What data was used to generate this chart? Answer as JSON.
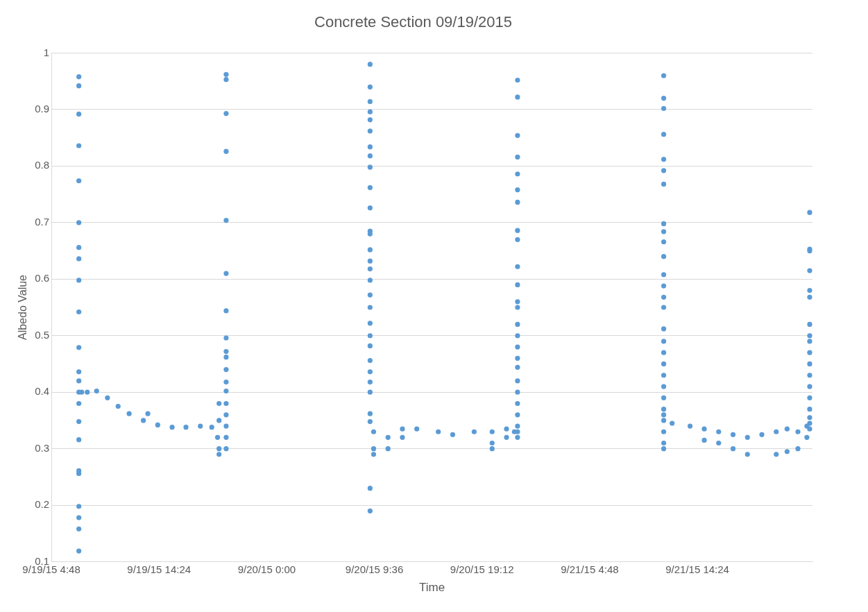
{
  "chart_data": {
    "type": "scatter",
    "title": "Concrete Section 09/19/2015",
    "xlabel": "Time",
    "ylabel": "Albedo Value",
    "xlim": [
      "2015-09-19T04:48",
      "2015-09-22T00:40"
    ],
    "xticks": [
      {
        "value": "2015-09-19T04:48",
        "label": "9/19/15 4:48"
      },
      {
        "value": "2015-09-19T14:24",
        "label": "9/19/15 14:24"
      },
      {
        "value": "2015-09-20T00:00",
        "label": "9/20/15 0:00"
      },
      {
        "value": "2015-09-20T09:36",
        "label": "9/20/15 9:36"
      },
      {
        "value": "2015-09-20T19:12",
        "label": "9/20/15 19:12"
      },
      {
        "value": "2015-09-21T04:48",
        "label": "9/21/15 4:48"
      },
      {
        "value": "2015-09-21T14:24",
        "label": "9/21/15 14:24"
      }
    ],
    "ylim": [
      0.1,
      1
    ],
    "yticks": [
      0.1,
      0.2,
      0.3,
      0.4,
      0.5,
      0.6,
      0.7,
      0.8,
      0.9,
      1
    ],
    "grid": "y",
    "legend": false,
    "marker": "circle",
    "series": [
      {
        "color": "#5b9bd5",
        "x": [
          "2015-09-19T07:15",
          "2015-09-19T07:15",
          "2015-09-19T07:15",
          "2015-09-19T07:15",
          "2015-09-19T07:15",
          "2015-09-19T07:15",
          "2015-09-19T07:15",
          "2015-09-19T07:15",
          "2015-09-19T07:15",
          "2015-09-19T07:15",
          "2015-09-19T07:15",
          "2015-09-19T07:15",
          "2015-09-19T07:15",
          "2015-09-19T07:15",
          "2015-09-19T07:15",
          "2015-09-19T07:15",
          "2015-09-19T07:15",
          "2015-09-19T07:15",
          "2015-09-19T07:15",
          "2015-09-19T07:15",
          "2015-09-19T07:15",
          "2015-09-19T07:15",
          "2015-09-19T07:15",
          "2015-09-19T07:30",
          "2015-09-19T08:00",
          "2015-09-19T08:50",
          "2015-09-19T09:48",
          "2015-09-19T10:45",
          "2015-09-19T11:44",
          "2015-09-19T13:00",
          "2015-09-19T13:24",
          "2015-09-19T14:17",
          "2015-09-19T15:34",
          "2015-09-19T16:48",
          "2015-09-19T18:05",
          "2015-09-19T19:06",
          "2015-09-19T19:37",
          "2015-09-19T19:45",
          "2015-09-19T19:45",
          "2015-09-19T19:45",
          "2015-09-19T19:45",
          "2015-09-19T20:23",
          "2015-09-19T20:23",
          "2015-09-19T20:23",
          "2015-09-19T20:23",
          "2015-09-19T20:23",
          "2015-09-19T20:23",
          "2015-09-19T20:23",
          "2015-09-19T20:23",
          "2015-09-19T20:23",
          "2015-09-19T20:23",
          "2015-09-19T20:23",
          "2015-09-19T20:23",
          "2015-09-19T20:23",
          "2015-09-19T20:23",
          "2015-09-19T20:23",
          "2015-09-19T20:23",
          "2015-09-19T20:23",
          "2015-09-19T20:23",
          "2015-09-20T09:13",
          "2015-09-20T09:13",
          "2015-09-20T09:13",
          "2015-09-20T09:13",
          "2015-09-20T09:13",
          "2015-09-20T09:13",
          "2015-09-20T09:13",
          "2015-09-20T09:13",
          "2015-09-20T09:13",
          "2015-09-20T09:13",
          "2015-09-20T09:13",
          "2015-09-20T09:13",
          "2015-09-20T09:13",
          "2015-09-20T09:13",
          "2015-09-20T09:13",
          "2015-09-20T09:13",
          "2015-09-20T09:13",
          "2015-09-20T09:13",
          "2015-09-20T09:13",
          "2015-09-20T09:13",
          "2015-09-20T09:13",
          "2015-09-20T09:13",
          "2015-09-20T09:13",
          "2015-09-20T09:13",
          "2015-09-20T09:13",
          "2015-09-20T09:13",
          "2015-09-20T09:13",
          "2015-09-20T09:13",
          "2015-09-20T09:13",
          "2015-09-20T09:13",
          "2015-09-20T09:32",
          "2015-09-20T09:32",
          "2015-09-20T09:32",
          "2015-09-20T10:49",
          "2015-09-20T10:49",
          "2015-09-20T12:06",
          "2015-09-20T12:06",
          "2015-09-20T13:23",
          "2015-09-20T15:18",
          "2015-09-20T16:35",
          "2015-09-20T18:30",
          "2015-09-20T20:06",
          "2015-09-20T20:06",
          "2015-09-20T20:06",
          "2015-09-20T21:23",
          "2015-09-20T21:23",
          "2015-09-20T22:05",
          "2015-09-20T22:22",
          "2015-09-20T22:22",
          "2015-09-20T22:22",
          "2015-09-20T22:22",
          "2015-09-20T22:22",
          "2015-09-20T22:22",
          "2015-09-20T22:22",
          "2015-09-20T22:22",
          "2015-09-20T22:22",
          "2015-09-20T22:22",
          "2015-09-20T22:22",
          "2015-09-20T22:22",
          "2015-09-20T22:22",
          "2015-09-20T22:22",
          "2015-09-20T22:22",
          "2015-09-20T22:22",
          "2015-09-20T22:22",
          "2015-09-20T22:22",
          "2015-09-20T22:22",
          "2015-09-20T22:22",
          "2015-09-20T22:22",
          "2015-09-20T22:22",
          "2015-09-20T22:22",
          "2015-09-20T22:22",
          "2015-09-20T22:22",
          "2015-09-21T11:24",
          "2015-09-21T11:24",
          "2015-09-21T11:24",
          "2015-09-21T11:24",
          "2015-09-21T11:24",
          "2015-09-21T11:24",
          "2015-09-21T11:24",
          "2015-09-21T11:24",
          "2015-09-21T11:24",
          "2015-09-21T11:24",
          "2015-09-21T11:24",
          "2015-09-21T11:24",
          "2015-09-21T11:24",
          "2015-09-21T11:24",
          "2015-09-21T11:24",
          "2015-09-21T11:24",
          "2015-09-21T11:24",
          "2015-09-21T11:24",
          "2015-09-21T11:24",
          "2015-09-21T11:24",
          "2015-09-21T11:24",
          "2015-09-21T11:24",
          "2015-09-21T11:24",
          "2015-09-21T11:24",
          "2015-09-21T11:24",
          "2015-09-21T11:24",
          "2015-09-21T11:24",
          "2015-09-21T11:24",
          "2015-09-21T12:09",
          "2015-09-21T13:45",
          "2015-09-21T15:01",
          "2015-09-21T15:01",
          "2015-09-21T16:18",
          "2015-09-21T16:18",
          "2015-09-21T17:35",
          "2015-09-21T17:35",
          "2015-09-21T18:52",
          "2015-09-21T18:52",
          "2015-09-21T20:09",
          "2015-09-21T21:26",
          "2015-09-21T21:26",
          "2015-09-21T22:24",
          "2015-09-21T22:24",
          "2015-09-21T23:22",
          "2015-09-21T23:22",
          "2015-09-22T00:10",
          "2015-09-22T00:10",
          "2015-09-22T00:25",
          "2015-09-22T00:25",
          "2015-09-22T00:25",
          "2015-09-22T00:25",
          "2015-09-22T00:25",
          "2015-09-22T00:25",
          "2015-09-22T00:25",
          "2015-09-22T00:25",
          "2015-09-22T00:25",
          "2015-09-22T00:25",
          "2015-09-22T00:25",
          "2015-09-22T00:25",
          "2015-09-22T00:25",
          "2015-09-22T00:25",
          "2015-09-22T00:25",
          "2015-09-22T00:25",
          "2015-09-22T00:25",
          "2015-09-22T00:25"
        ],
        "values": [
          0.958,
          0.942,
          0.892,
          0.836,
          0.774,
          0.7,
          0.656,
          0.636,
          0.598,
          0.542,
          0.479,
          0.436,
          0.42,
          0.4,
          0.38,
          0.348,
          0.316,
          0.261,
          0.256,
          0.198,
          0.178,
          0.158,
          0.119,
          0.4,
          0.4,
          0.402,
          0.39,
          0.375,
          0.362,
          0.35,
          0.362,
          0.342,
          0.338,
          0.338,
          0.34,
          0.338,
          0.32,
          0.38,
          0.35,
          0.3,
          0.29,
          0.962,
          0.953,
          0.893,
          0.826,
          0.704,
          0.61,
          0.544,
          0.496,
          0.472,
          0.462,
          0.44,
          0.418,
          0.402,
          0.38,
          0.36,
          0.34,
          0.32,
          0.3,
          0.98,
          0.94,
          0.914,
          0.896,
          0.882,
          0.862,
          0.834,
          0.818,
          0.798,
          0.762,
          0.726,
          0.685,
          0.68,
          0.652,
          0.632,
          0.618,
          0.598,
          0.572,
          0.55,
          0.522,
          0.5,
          0.482,
          0.456,
          0.436,
          0.418,
          0.4,
          0.362,
          0.348,
          0.23,
          0.19,
          0.33,
          0.3,
          0.29,
          0.32,
          0.3,
          0.335,
          0.32,
          0.335,
          0.33,
          0.325,
          0.33,
          0.33,
          0.31,
          0.3,
          0.335,
          0.32,
          0.33,
          0.952,
          0.922,
          0.854,
          0.816,
          0.786,
          0.758,
          0.736,
          0.686,
          0.67,
          0.622,
          0.59,
          0.56,
          0.55,
          0.52,
          0.5,
          0.48,
          0.46,
          0.444,
          0.42,
          0.4,
          0.38,
          0.36,
          0.34,
          0.33,
          0.32,
          0.96,
          0.92,
          0.902,
          0.856,
          0.812,
          0.792,
          0.768,
          0.698,
          0.684,
          0.666,
          0.64,
          0.608,
          0.588,
          0.568,
          0.55,
          0.512,
          0.49,
          0.47,
          0.45,
          0.43,
          0.41,
          0.39,
          0.37,
          0.36,
          0.35,
          0.33,
          0.31,
          0.3,
          0.345,
          0.34,
          0.335,
          0.315,
          0.33,
          0.31,
          0.325,
          0.3,
          0.32,
          0.29,
          0.325,
          0.33,
          0.29,
          0.335,
          0.295,
          0.33,
          0.3,
          0.32,
          0.34,
          0.718,
          0.653,
          0.65,
          0.615,
          0.58,
          0.568,
          0.52,
          0.5,
          0.49,
          0.47,
          0.45,
          0.43,
          0.41,
          0.39,
          0.37,
          0.355,
          0.345,
          0.335
        ]
      }
    ]
  }
}
